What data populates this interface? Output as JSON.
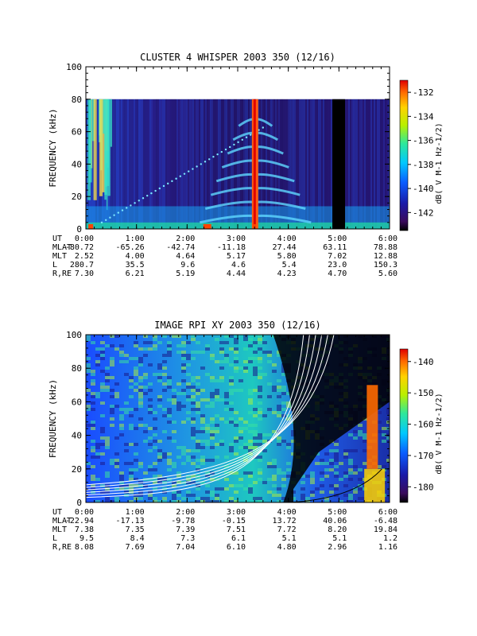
{
  "chart_data": [
    {
      "type": "heatmap",
      "title": "CLUSTER 4 WHISPER 2003 350 (12/16)",
      "ylabel": "FREQUENCY (kHz)",
      "ylim": [
        0,
        100
      ],
      "yticks": [
        "0",
        "20",
        "40",
        "60",
        "80",
        "100"
      ],
      "colorbar": {
        "label": "dB( V M<sup>-1</sup> Hz<sup>-1/2</sup>)",
        "label_plain": "dB( V M-1 Hz-1/2)",
        "range": [
          -143.5,
          -131
        ],
        "ticks": [
          "-132",
          "-134",
          "-136",
          "-138",
          "-140",
          "-142"
        ],
        "tick_values": [
          -132,
          -134,
          -136,
          -138,
          -140,
          -142
        ]
      },
      "data_extent": {
        "freq_max": 80
      },
      "ephemeris": {
        "UT": [
          "0:00",
          "1:00",
          "2:00",
          "3:00",
          "4:00",
          "5:00",
          "6:00"
        ],
        "MLAT": [
          "-80.72",
          "-65.26",
          "-42.74",
          "-11.18",
          "27.44",
          "63.11",
          "78.88"
        ],
        "MLT": [
          "2.52",
          "4.00",
          "4.64",
          "5.17",
          "5.80",
          "7.02",
          "12.88"
        ],
        "L": [
          "280.7",
          "35.5",
          "9.6",
          "4.6",
          "5.4",
          "23.0",
          "150.3"
        ],
        "R,RE": [
          "7.30",
          "6.21",
          "5.19",
          "4.44",
          "4.23",
          "4.70",
          "5.60"
        ]
      }
    },
    {
      "type": "heatmap",
      "title": "IMAGE RPI XY 2003 350 (12/16)",
      "ylabel": "FREQUENCY (kHz)",
      "ylim": [
        0,
        100
      ],
      "yticks": [
        "0",
        "20",
        "40",
        "60",
        "80",
        "100"
      ],
      "colorbar": {
        "label": "dB( V M<sup>-1</sup> Hz<sup>-1/2</sup>)",
        "label_plain": "dB( V M-1 Hz-1/2)",
        "range": [
          -185,
          -136
        ],
        "ticks": [
          "-140",
          "-150",
          "-160",
          "-170",
          "-180"
        ],
        "tick_values": [
          -140,
          -150,
          -160,
          -170,
          -180
        ]
      },
      "ephemeris": {
        "UT": [
          "0:00",
          "1:00",
          "2:00",
          "3:00",
          "4:00",
          "5:00",
          "6:00"
        ],
        "MLAT": [
          "-22.94",
          "-17.13",
          "-9.78",
          "-0.15",
          "13.72",
          "40.06",
          "-6.48"
        ],
        "MLT": [
          "7.38",
          "7.35",
          "7.39",
          "7.51",
          "7.72",
          "8.20",
          "19.84"
        ],
        "L": [
          "9.5",
          "8.4",
          "7.3",
          "6.1",
          "5.1",
          "5.1",
          "1.2"
        ],
        "R,RE": [
          "8.08",
          "7.69",
          "7.04",
          "6.10",
          "4.80",
          "2.96",
          "1.16"
        ]
      }
    }
  ],
  "ephemeris_labels": {
    "UT": "UT",
    "MLAT": "MLAT",
    "MLT": "MLT",
    "L": "L",
    "R,RE": "R,RE"
  }
}
